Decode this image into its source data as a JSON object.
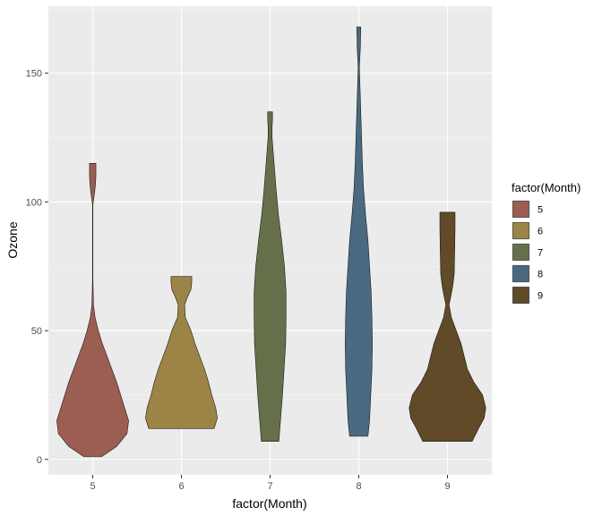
{
  "chart_data": {
    "type": "violin",
    "xlabel": "factor(Month)",
    "ylabel": "Ozone",
    "ylim": [
      -6,
      176
    ],
    "yticks": [
      0,
      50,
      100,
      150
    ],
    "grid": true,
    "legend": {
      "title": "factor(Month)",
      "placement": "right",
      "entries": [
        "5",
        "6",
        "7",
        "8",
        "9"
      ]
    },
    "categories": [
      "5",
      "6",
      "7",
      "8",
      "9"
    ],
    "series": [
      {
        "category": "5",
        "color": "#9C5E52",
        "min": 1,
        "max": 115,
        "profile": [
          [
            1,
            0.22
          ],
          [
            5,
            0.6
          ],
          [
            10,
            0.86
          ],
          [
            15,
            0.9
          ],
          [
            20,
            0.8
          ],
          [
            25,
            0.7
          ],
          [
            30,
            0.6
          ],
          [
            35,
            0.48
          ],
          [
            40,
            0.36
          ],
          [
            45,
            0.24
          ],
          [
            50,
            0.14
          ],
          [
            55,
            0.06
          ],
          [
            60,
            0.02
          ],
          [
            70,
            0.005
          ],
          [
            90,
            0.005
          ],
          [
            99,
            0.005
          ],
          [
            104,
            0.05
          ],
          [
            107,
            0.07
          ],
          [
            110,
            0.08
          ],
          [
            115,
            0.08
          ]
        ]
      },
      {
        "category": "6",
        "color": "#9C8447",
        "min": 12,
        "max": 71,
        "profile": [
          [
            12,
            0.82
          ],
          [
            16,
            0.9
          ],
          [
            20,
            0.86
          ],
          [
            25,
            0.76
          ],
          [
            30,
            0.68
          ],
          [
            35,
            0.58
          ],
          [
            40,
            0.46
          ],
          [
            45,
            0.34
          ],
          [
            50,
            0.24
          ],
          [
            55,
            0.1
          ],
          [
            60,
            0.08
          ],
          [
            63,
            0.15
          ],
          [
            66,
            0.24
          ],
          [
            69,
            0.26
          ],
          [
            71,
            0.26
          ]
        ]
      },
      {
        "category": "7",
        "color": "#65704B",
        "min": 7,
        "max": 135,
        "profile": [
          [
            7,
            0.22
          ],
          [
            15,
            0.26
          ],
          [
            25,
            0.31
          ],
          [
            35,
            0.35
          ],
          [
            45,
            0.39
          ],
          [
            55,
            0.4
          ],
          [
            65,
            0.4
          ],
          [
            75,
            0.36
          ],
          [
            85,
            0.29
          ],
          [
            95,
            0.21
          ],
          [
            105,
            0.15
          ],
          [
            115,
            0.1
          ],
          [
            125,
            0.05
          ],
          [
            129,
            0.05
          ],
          [
            132,
            0.06
          ],
          [
            135,
            0.06
          ]
        ]
      },
      {
        "category": "8",
        "color": "#4A6A82",
        "min": 9,
        "max": 168,
        "profile": [
          [
            9,
            0.23
          ],
          [
            15,
            0.27
          ],
          [
            25,
            0.3
          ],
          [
            35,
            0.33
          ],
          [
            45,
            0.34
          ],
          [
            55,
            0.33
          ],
          [
            65,
            0.31
          ],
          [
            75,
            0.27
          ],
          [
            85,
            0.23
          ],
          [
            95,
            0.17
          ],
          [
            105,
            0.12
          ],
          [
            115,
            0.09
          ],
          [
            125,
            0.07
          ],
          [
            135,
            0.05
          ],
          [
            145,
            0.03
          ],
          [
            152,
            0.015
          ],
          [
            160,
            0.04
          ],
          [
            168,
            0.05
          ]
        ]
      },
      {
        "category": "9",
        "color": "#604A28",
        "min": 7,
        "max": 96,
        "profile": [
          [
            7,
            0.62
          ],
          [
            12,
            0.78
          ],
          [
            16,
            0.92
          ],
          [
            20,
            0.96
          ],
          [
            25,
            0.88
          ],
          [
            30,
            0.66
          ],
          [
            35,
            0.5
          ],
          [
            40,
            0.42
          ],
          [
            45,
            0.34
          ],
          [
            50,
            0.22
          ],
          [
            55,
            0.1
          ],
          [
            60,
            0.04
          ],
          [
            63,
            0.08
          ],
          [
            67,
            0.13
          ],
          [
            72,
            0.17
          ],
          [
            80,
            0.18
          ],
          [
            90,
            0.19
          ],
          [
            96,
            0.19
          ]
        ]
      }
    ]
  }
}
